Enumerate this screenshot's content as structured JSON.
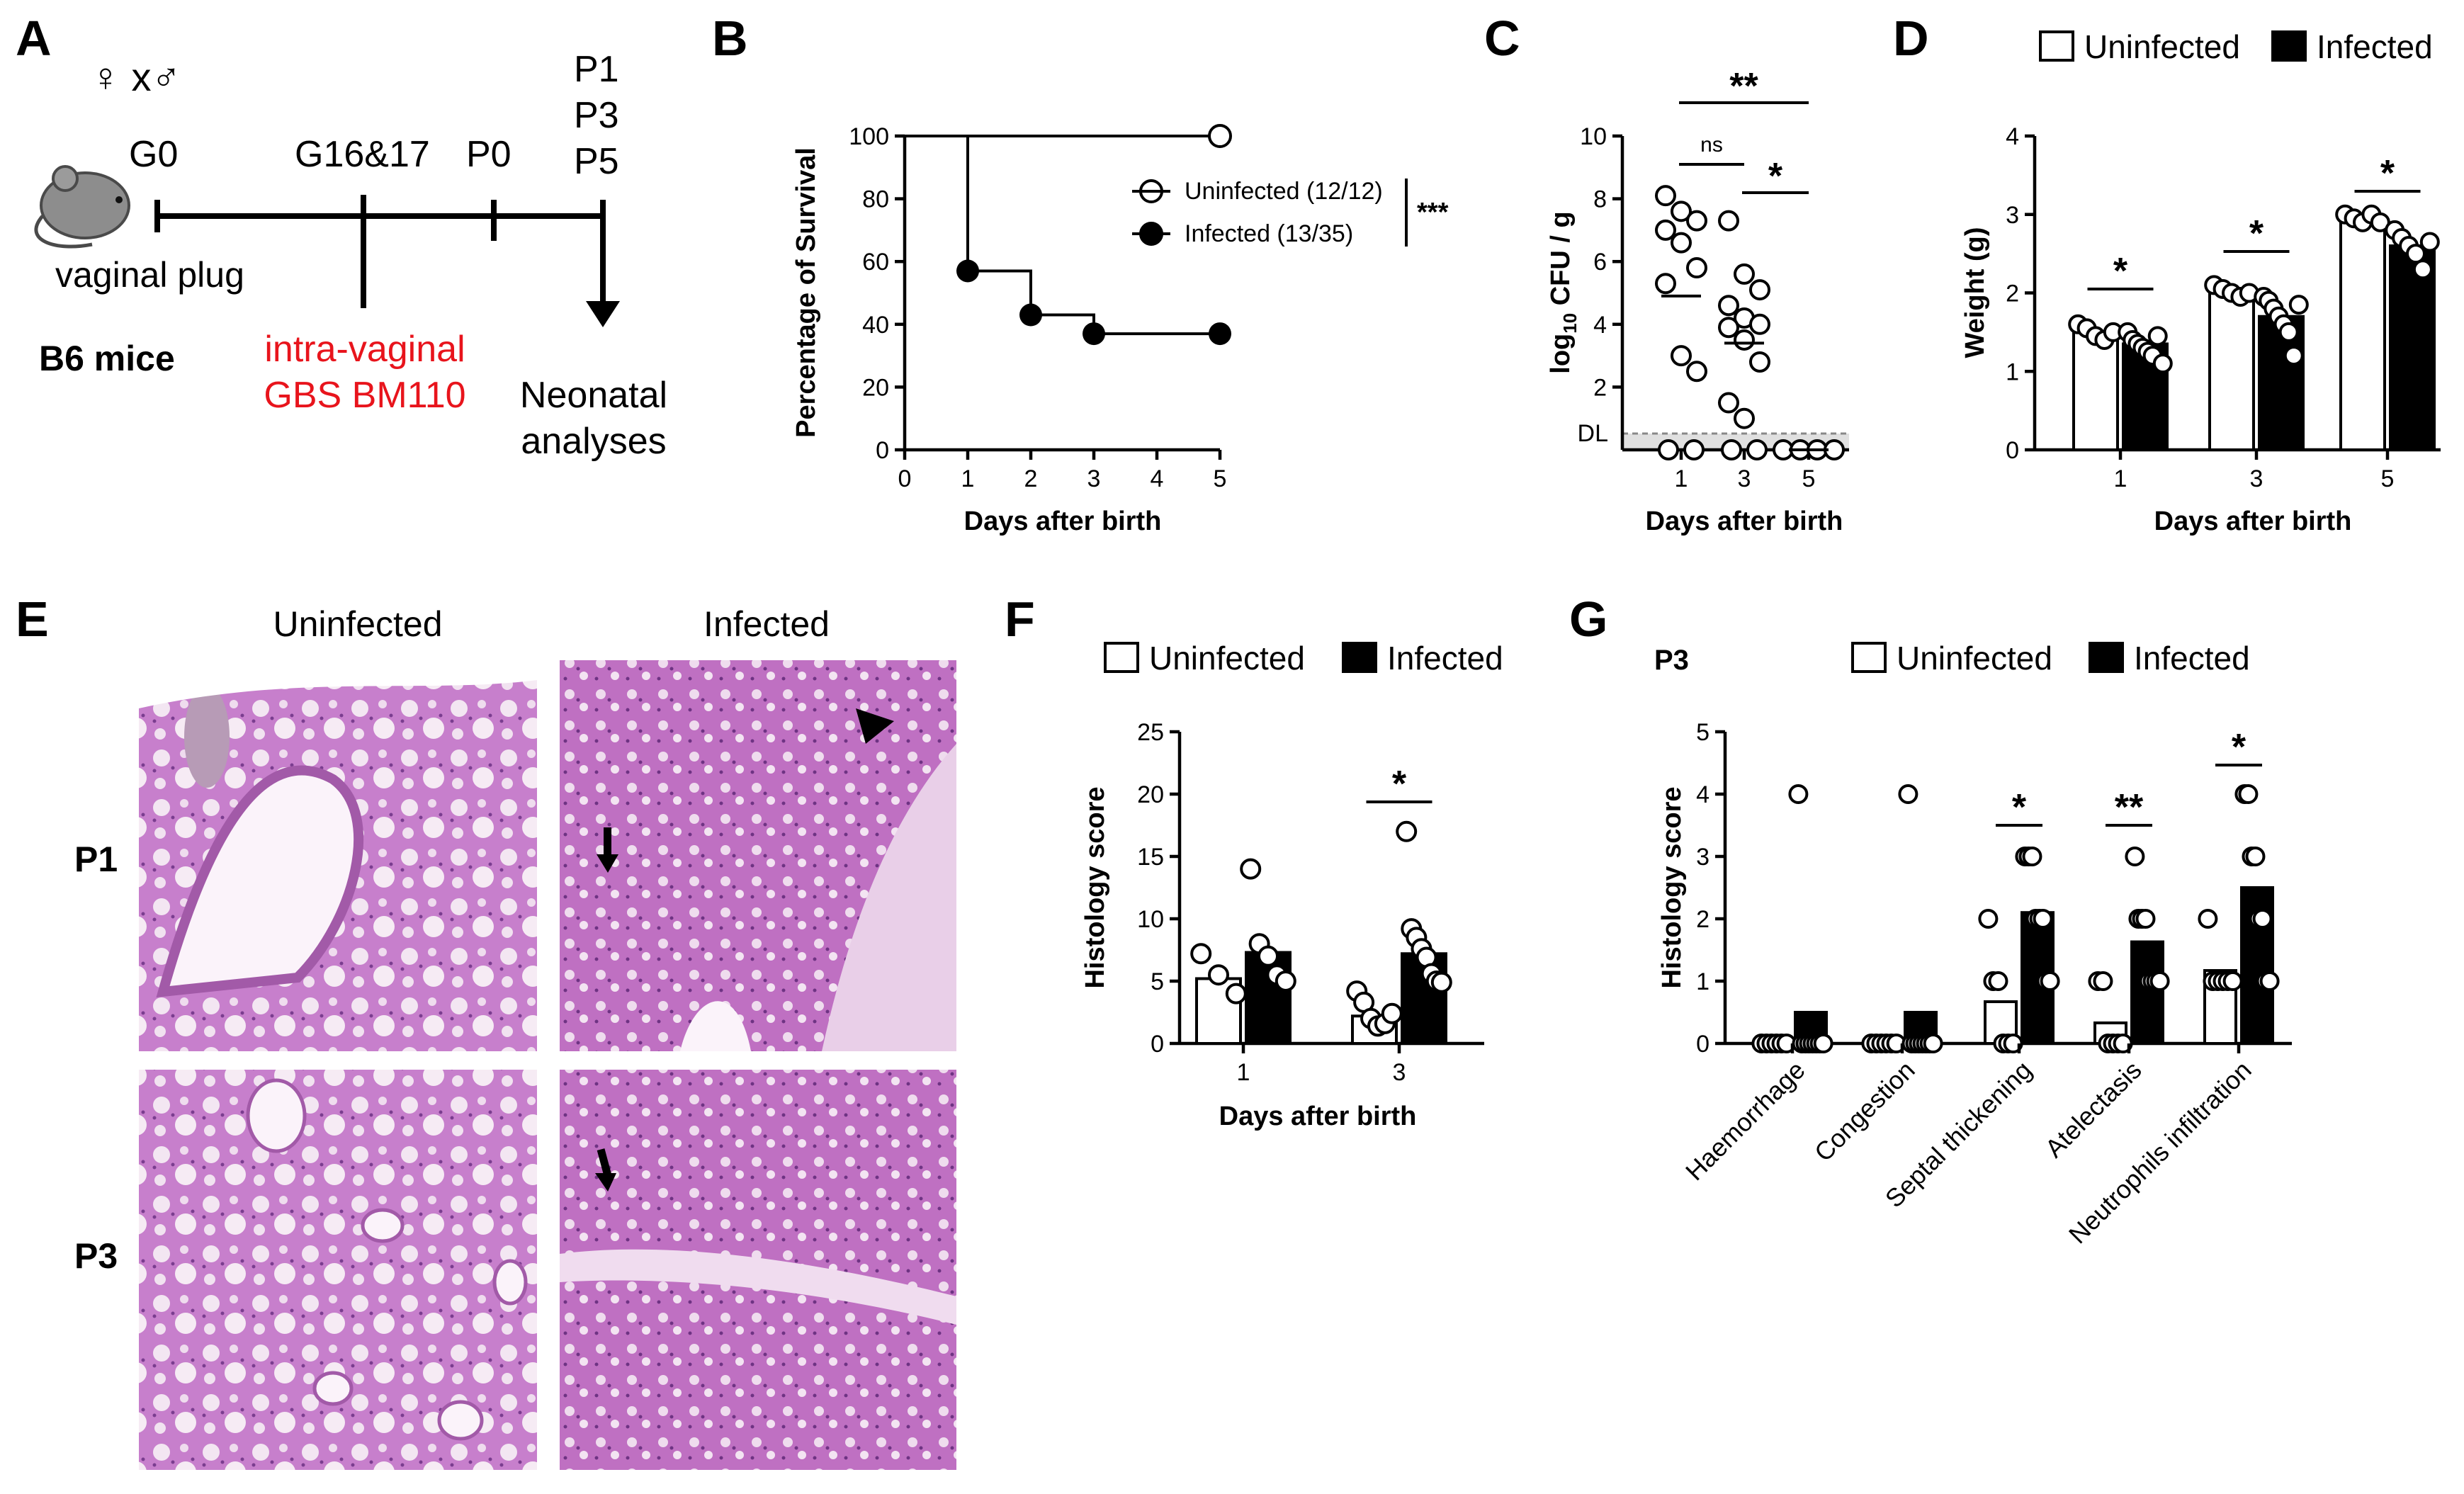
{
  "panels": {
    "A": "A",
    "B": "B",
    "C": "C",
    "D": "D",
    "E": "E",
    "F": "F",
    "G": "G"
  },
  "schematic": {
    "mating": "♀ x♂",
    "g0": "G0",
    "g16": "G16&17",
    "p0": "P0",
    "p_days": [
      "P1",
      "P3",
      "P5"
    ],
    "plug": "vaginal plug",
    "strain": "B6 mice",
    "infection_line1": "intra-vaginal",
    "infection_line2": "GBS BM110",
    "analysis_line1": "Neonatal",
    "analysis_line2": "analyses"
  },
  "histology": {
    "col_uninfected": "Uninfected",
    "col_infected": "Infected",
    "row_p1": "P1",
    "row_p3": "P3"
  },
  "colors": {
    "infected": "#000000",
    "uninfected": "#ffffff",
    "red_text": "#e8141c",
    "tissue": "#d98fcf"
  },
  "chart_data": [
    {
      "id": "B",
      "type": "line",
      "xlabel": "Days after birth",
      "ylabel": "Percentage of Survival",
      "xlim": [
        0,
        5
      ],
      "ylim": [
        0,
        100
      ],
      "xticks": [
        "0",
        "1",
        "2",
        "3",
        "4",
        "5"
      ],
      "yticks": [
        "0",
        "20",
        "40",
        "60",
        "80",
        "100"
      ],
      "series": [
        {
          "name": "Uninfected (12/12)",
          "x": [
            5
          ],
          "y": [
            100
          ],
          "step_x": [
            0,
            5
          ],
          "step_y": [
            100,
            100
          ]
        },
        {
          "name": "Infected (13/35)",
          "x": [
            1,
            2,
            3,
            5
          ],
          "y": [
            57,
            43,
            37,
            37
          ]
        }
      ],
      "significance": "***"
    },
    {
      "id": "C",
      "type": "scatter",
      "xlabel": "Days after birth",
      "ylabel_main": "log",
      "ylabel_sub": "10",
      "ylabel_rest": " CFU / g",
      "categories": [
        "1",
        "3",
        "5"
      ],
      "yticks": [
        "2",
        "4",
        "6",
        "8",
        "10"
      ],
      "dl_label": "DL",
      "ylim": [
        0,
        10
      ],
      "points": {
        "1": [
          8.1,
          7.6,
          7.3,
          7.0,
          6.6,
          5.8,
          5.3,
          3.0,
          2.5,
          0,
          0
        ],
        "3": [
          7.3,
          5.6,
          5.1,
          4.6,
          4.2,
          4.0,
          3.9,
          3.5,
          2.8,
          1.5,
          1.0,
          0,
          0
        ],
        "5": [
          0,
          0,
          0,
          0
        ]
      },
      "medians": {
        "1": 4.9,
        "3": 3.4,
        "5": 0
      },
      "comparisons": [
        {
          "from": "1",
          "to": "5",
          "label": "**"
        },
        {
          "from": "1",
          "to": "3",
          "label": "ns"
        },
        {
          "from": "3",
          "to": "5",
          "label": "*"
        }
      ]
    },
    {
      "id": "D",
      "type": "bar",
      "xlabel": "Days after birth",
      "ylabel": "Weight (g)",
      "categories": [
        "1",
        "3",
        "5"
      ],
      "ylim": [
        0,
        4
      ],
      "yticks": [
        "0",
        "1",
        "2",
        "3",
        "4"
      ],
      "series": [
        {
          "name": "Uninfected",
          "values": [
            1.5,
            2.0,
            2.95
          ]
        },
        {
          "name": "Infected",
          "values": [
            1.35,
            1.7,
            2.6
          ]
        }
      ],
      "points": {
        "Uninfected": [
          [
            1.6,
            1.55,
            1.45,
            1.4,
            1.5
          ],
          [
            2.1,
            2.05,
            2.0,
            1.95,
            2.0
          ],
          [
            3.0,
            2.95,
            2.9,
            3.0,
            2.9
          ]
        ],
        "Infected": [
          [
            1.5,
            1.4,
            1.35,
            1.3,
            1.25,
            1.2,
            1.45,
            1.1
          ],
          [
            1.95,
            1.9,
            1.8,
            1.7,
            1.6,
            1.5,
            1.2,
            1.85
          ],
          [
            2.8,
            2.7,
            2.6,
            2.5,
            2.3,
            2.65
          ]
        ]
      },
      "significance": [
        "*",
        "*",
        "*"
      ]
    },
    {
      "id": "F",
      "type": "bar",
      "xlabel": "Days after birth",
      "ylabel": "Histology score",
      "categories": [
        "1",
        "3"
      ],
      "ylim": [
        0,
        25
      ],
      "yticks": [
        "0",
        "5",
        "10",
        "15",
        "20",
        "25"
      ],
      "series": [
        {
          "name": "Uninfected",
          "values": [
            5.2,
            2.2
          ]
        },
        {
          "name": "Infected",
          "values": [
            7.3,
            7.2
          ]
        }
      ],
      "points": {
        "Uninfected": [
          [
            7.2,
            5.5,
            4.0
          ],
          [
            4.2,
            3.3,
            2.0,
            1.4,
            1.6,
            2.4
          ]
        ],
        "Infected": [
          [
            14.0,
            8.0,
            7.0,
            5.5,
            5.0
          ],
          [
            17.0,
            9.2,
            8.5,
            7.6,
            6.9,
            5.6,
            5.0,
            4.9
          ]
        ]
      },
      "significance": [
        null,
        "*"
      ]
    },
    {
      "id": "G",
      "type": "bar",
      "title": "P3",
      "ylabel": "Histology score",
      "categories": [
        "Haemorrhage",
        "Congestion",
        "Septal thickening",
        "Atelectasis",
        "Neutrophils infiltration"
      ],
      "ylim": [
        0,
        5
      ],
      "yticks": [
        "0",
        "1",
        "2",
        "3",
        "4",
        "5"
      ],
      "series": [
        {
          "name": "Uninfected",
          "values": [
            0,
            0,
            0.67,
            0.33,
            1.17
          ]
        },
        {
          "name": "Infected",
          "values": [
            0.5,
            0.5,
            2.1,
            1.63,
            2.5
          ]
        }
      ],
      "points": {
        "Uninfected": [
          [
            0,
            0,
            0,
            0,
            0,
            0
          ],
          [
            0,
            0,
            0,
            0,
            0,
            0
          ],
          [
            2,
            1,
            1,
            0,
            0,
            0
          ],
          [
            1,
            1,
            0,
            0,
            0,
            0
          ],
          [
            2,
            1,
            1,
            1,
            1,
            1
          ]
        ],
        "Infected": [
          [
            4,
            0,
            0,
            0,
            0,
            0,
            0,
            0
          ],
          [
            4,
            0,
            0,
            0,
            0,
            0,
            0,
            0
          ],
          [
            3,
            3,
            3,
            2,
            2,
            2,
            1,
            1
          ],
          [
            3,
            2,
            2,
            2,
            1,
            1,
            1,
            1
          ],
          [
            4,
            4,
            3,
            3,
            2,
            2,
            1,
            1
          ]
        ]
      },
      "significance": [
        null,
        null,
        "*",
        "**",
        "*"
      ]
    }
  ]
}
